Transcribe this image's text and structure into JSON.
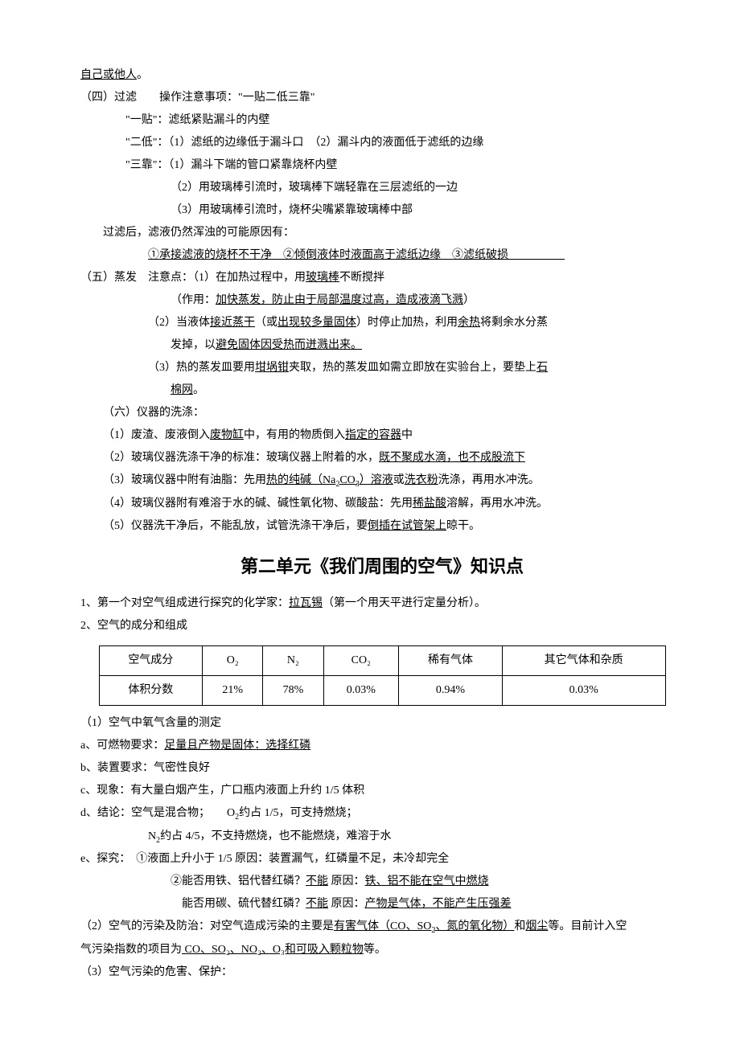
{
  "top": {
    "line1_underline": "自己或他人",
    "line1_tail": "。"
  },
  "section4": {
    "heading": "（四）过滤　　操作注意事项：\"一贴二低三靠\"",
    "tie": "\"一贴\"：滤纸紧贴漏斗的内壁",
    "low_head": "\"二低\"：（1）滤纸的边缘低于漏斗口　（2）漏斗内的液面低于滤纸的边缘",
    "lean1": "\"三靠\"：（1）漏斗下端的管口紧靠烧杯内壁",
    "lean2": "（2）用玻璃棒引流时，玻璃棒下端轻靠在三层滤纸的一边",
    "lean3": "（3）用玻璃棒引流时，烧杯尖嘴紧靠玻璃棒中部",
    "after": "过滤后，滤液仍然浑浊的可能原因有：",
    "reasons_underline": "①承接滤液的烧杯不干净　②倾倒液体时液面高于滤纸边缘　③滤纸破损　　　　　"
  },
  "section5": {
    "heading_pre": "（五）蒸发　注意点：（1）在加热过程中，用",
    "glass_rod": "玻璃棒",
    "heading_post": "不断搅拌",
    "effect_pre": "（作用：",
    "effect_u": "加快蒸发，防止由于局部温度过高，造成液滴飞溅",
    "effect_post": "）",
    "p2_a": "（2）当液体",
    "p2_u1": "接近蒸干",
    "p2_b": "（或",
    "p2_u2": "出现较多量固体",
    "p2_c": "）时停止加热，利用",
    "p2_u3": "余热",
    "p2_d": "将剩余水分蒸",
    "p2_line2_a": "发掉，以",
    "p2_line2_u": "避免固体因受热而迸溅出来。",
    "p3_a": "（3）热的蒸发皿要用",
    "p3_u1": "坩埚钳",
    "p3_b": "夹取，热的蒸发皿如需立即放在实验台上，要垫上",
    "p3_u2": "石",
    "p3_line2_u": "棉网",
    "p3_line2_tail": "。"
  },
  "section6": {
    "heading": "（六）仪器的洗涤：",
    "p1_a": "（1）废渣、废液倒入",
    "p1_u1": "废物缸",
    "p1_b": "中，有用的物质倒入",
    "p1_u2": "指定的容器",
    "p1_c": "中",
    "p2_a": "（2）玻璃仪器洗涤干净的标准：玻璃仪器上附着的水，",
    "p2_u": "既不聚成水滴，也不成股流下",
    "p3_a": "（3）玻璃仪器中附有油脂：先用",
    "p3_u1": "热的纯碱（Na",
    "p3_sub1": "2",
    "p3_u1b": "CO",
    "p3_sub2": "3",
    "p3_u1c": "）溶液",
    "p3_b": "或",
    "p3_u2": "洗衣粉",
    "p3_c": "洗涤，再用水冲洗。",
    "p4_a": "（4）玻璃仪器附有难溶于水的碱、碱性氧化物、碳酸盐：先用",
    "p4_u": "稀盐酸",
    "p4_b": "溶解，再用水冲洗。",
    "p5_a": "（5）仪器洗干净后，不能乱放，试管洗涤干净后，要",
    "p5_u": "倒插在试管架上",
    "p5_b": "晾干。"
  },
  "unit2": {
    "title": "第二单元《我们周围的空气》知识点",
    "p1_a": "1、第一个对空气组成进行探究的化学家：",
    "p1_u": "拉瓦锡",
    "p1_b": "（第一个用天平进行定量分析）。",
    "p2": "2、空气的成分和组成"
  },
  "air_table": {
    "headers": [
      "空气成分",
      "O₂",
      "N₂",
      "CO₂",
      "稀有气体",
      "其它气体和杂质"
    ],
    "row_label": "体积分数",
    "row_values": [
      "21%",
      "78%",
      "0.03%",
      "0.94%",
      "0.03%"
    ]
  },
  "after_table": {
    "p1": "（1）空气中氧气含量的测定",
    "a_pre": "a、可燃物要求：",
    "a_u": "足量且产物是固体：选择红磷",
    "b": "b、装置要求：气密性良好",
    "c": "c、现象：有大量白烟产生，广口瓶内液面上升约 1/5 体积",
    "d_pre": "d、结论：空气是混合物；　　O",
    "d_sub1": "2",
    "d_mid": "约占 1/5，可支持燃烧；",
    "d2_pre": "N",
    "d2_sub": "2",
    "d2_post": "约占 4/5，不支持燃烧，也不能燃烧，难溶于水",
    "e1": "e、探究：　①液面上升小于 1/5 原因：装置漏气，红磷量不足，未冷却完全",
    "e2_a": "②能否用铁、铝代替红磷？",
    "e2_u1": "不能",
    "e2_b": " 原因：",
    "e2_u2": "铁、铝不能在空气中燃烧",
    "e3_a": "能否用碳、硫代替红磷？",
    "e3_u1": "不能",
    "e3_b": " 原因：",
    "e3_u2": "产物是气体，不能产生压强差",
    "p2_a": "（2）空气的污染及防治：对空气造成污染的主要是",
    "p2_u1": "有害气体（CO、SO",
    "p2_sub1": "2",
    "p2_u1b": "、氮的氧化物）",
    "p2_b": "和",
    "p2_u2": "烟尘",
    "p2_c": "等。目前计入空",
    "p2_line2_a": "气污染指数的项目为",
    "p2_line2_u": " CO、SO₂、NO₂、O₃和可吸入颗粒物",
    "p2_line2_b": "等。",
    "p3": "（3）空气污染的危害、保护："
  }
}
